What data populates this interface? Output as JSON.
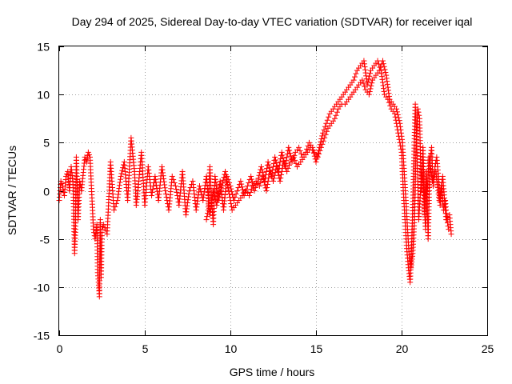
{
  "chart_data": {
    "type": "scatter",
    "title": "Day 294 of 2025, Sidereal Day-to-day VTEC variation (SDTVAR) for receiver iqal",
    "xlabel": "GPS time / hours",
    "ylabel": "SDTVAR / TECUs",
    "xlim": [
      0,
      25
    ],
    "ylim": [
      -15,
      15
    ],
    "xticks": [
      0,
      5,
      10,
      15,
      20,
      25
    ],
    "yticks": [
      -15,
      -10,
      -5,
      0,
      5,
      10,
      15
    ],
    "xtick_labels": [
      "0",
      "5",
      "10",
      "15",
      "20",
      "25"
    ],
    "ytick_labels": [
      "-15",
      "-10",
      "-5",
      "0",
      "5",
      "10",
      "15"
    ],
    "grid": true,
    "marker": "plus",
    "series": [
      {
        "name": "SDTVAR",
        "color": "#ff0000",
        "x": [
          0.0,
          0.1,
          0.2,
          0.3,
          0.4,
          0.5,
          0.6,
          0.7,
          0.8,
          0.85,
          0.9,
          0.95,
          1.0,
          1.05,
          1.1,
          1.2,
          1.3,
          1.5,
          1.6,
          1.7,
          1.8,
          2.0,
          2.1,
          2.2,
          2.25,
          2.3,
          2.35,
          2.4,
          2.45,
          2.5,
          2.6,
          2.8,
          3.0,
          3.2,
          3.4,
          3.6,
          3.8,
          4.0,
          4.2,
          4.4,
          4.5,
          4.6,
          4.8,
          5.0,
          5.2,
          5.4,
          5.6,
          5.8,
          6.0,
          6.2,
          6.4,
          6.6,
          6.8,
          7.0,
          7.2,
          7.4,
          7.6,
          7.8,
          8.0,
          8.2,
          8.4,
          8.6,
          8.8,
          9.0,
          9.2,
          9.4,
          9.6,
          9.8,
          10.0,
          10.2,
          10.4,
          10.6,
          10.8,
          11.0,
          11.2,
          11.4,
          11.6,
          11.8,
          12.0,
          12.2,
          12.4,
          12.6,
          12.8,
          13.0,
          13.2,
          13.4,
          13.6,
          13.8,
          14.0,
          14.2,
          14.4,
          14.6,
          14.8,
          15.0,
          15.2,
          15.4,
          15.6,
          15.8,
          16.0,
          16.2,
          16.4,
          16.6,
          16.8,
          17.0,
          17.2,
          17.4,
          17.6,
          17.8,
          18.0,
          18.2,
          18.4,
          18.6,
          18.8,
          19.0,
          19.2,
          19.4,
          19.6,
          19.8,
          20.0,
          20.1,
          20.2,
          20.3,
          20.4,
          20.5,
          20.6,
          20.7,
          20.8,
          20.9,
          21.0,
          21.2,
          21.4,
          21.6,
          21.8,
          22.0,
          22.2,
          22.4,
          22.6,
          22.8,
          22.9
        ],
        "y": [
          -1.0,
          1.0,
          0.5,
          -0.5,
          1.5,
          2.0,
          0.0,
          2.5,
          1.0,
          -2.0,
          -6.5,
          -4.0,
          3.5,
          0.5,
          -3.0,
          1.0,
          0.0,
          3.5,
          3.0,
          4.0,
          3.5,
          -4.0,
          -5.0,
          -3.5,
          -8.5,
          -9.5,
          -11.0,
          -3.0,
          -9.0,
          -4.0,
          -3.5,
          -4.5,
          3.0,
          -2.0,
          -1.0,
          1.5,
          3.0,
          -1.0,
          5.5,
          2.0,
          -1.5,
          0.0,
          4.0,
          -1.5,
          2.5,
          -0.5,
          1.5,
          -1.0,
          2.5,
          0.0,
          -2.0,
          1.5,
          0.5,
          -1.5,
          2.0,
          -2.5,
          0.0,
          1.0,
          -2.0,
          0.5,
          -1.0,
          1.5,
          -2.5,
          0.0,
          -1.5,
          1.0,
          -2.0,
          1.5,
          0.5,
          -1.0,
          0.0,
          1.0,
          -0.5,
          0.5,
          1.5,
          0.0,
          1.0,
          2.5,
          1.0,
          3.0,
          1.5,
          3.5,
          2.0,
          4.0,
          2.5,
          4.5,
          3.0,
          4.0,
          4.5,
          3.5,
          4.0,
          5.0,
          4.5,
          3.0,
          4.5,
          6.0,
          7.0,
          8.0,
          8.5,
          9.0,
          9.5,
          10.0,
          10.5,
          11.0,
          11.5,
          12.5,
          13.0,
          13.5,
          11.0,
          12.5,
          13.0,
          13.5,
          12.5,
          10.0,
          9.5,
          8.5,
          8.0,
          6.0,
          4.0,
          0.0,
          -3.0,
          -6.0,
          -8.0,
          -9.5,
          -5.0,
          1.5,
          9.0,
          4.0,
          -3.0,
          2.5,
          -4.0,
          3.5,
          1.0,
          2.0,
          -1.0,
          1.5,
          -3.0,
          -2.5,
          -4.5
        ],
        "x2": [
          8.6,
          8.7,
          8.8,
          8.9,
          9.0,
          9.1,
          9.3,
          9.5,
          9.7,
          10.1,
          10.3,
          10.5,
          10.7,
          10.9,
          11.1,
          11.3,
          11.5,
          11.7,
          11.9,
          12.1,
          12.3,
          12.5,
          12.7,
          12.9,
          13.1,
          13.3,
          13.5,
          13.7,
          13.9,
          14.1,
          14.3,
          14.5,
          14.7,
          14.9,
          15.1,
          15.3,
          15.5,
          15.7,
          15.9,
          16.1,
          16.3,
          16.5,
          16.7,
          16.9,
          17.1,
          17.3,
          17.5,
          17.7,
          17.9,
          18.1,
          18.3,
          18.5,
          18.7,
          18.9,
          19.1,
          19.3,
          19.5,
          19.7,
          19.9,
          20.05,
          20.15,
          20.25,
          20.35,
          20.45,
          20.55,
          20.65,
          20.75,
          20.85,
          20.95,
          21.05,
          21.15,
          21.25,
          21.35,
          21.45,
          21.55,
          21.65,
          21.75,
          21.85,
          21.95,
          22.05,
          22.15,
          22.25,
          22.35,
          22.45,
          22.55,
          22.65,
          22.75
        ],
        "y2": [
          -3.0,
          -2.0,
          2.5,
          -1.0,
          -3.5,
          1.5,
          -1.0,
          0.5,
          2.0,
          -2.0,
          -1.5,
          -1.0,
          -0.5,
          0.0,
          -0.5,
          0.5,
          1.0,
          0.5,
          1.5,
          0.0,
          2.0,
          1.0,
          2.5,
          1.0,
          3.0,
          2.0,
          3.0,
          3.5,
          2.5,
          3.0,
          3.5,
          4.0,
          4.5,
          4.0,
          3.5,
          4.5,
          5.5,
          6.5,
          7.0,
          7.5,
          8.5,
          9.0,
          9.0,
          9.5,
          10.0,
          10.5,
          11.0,
          11.5,
          10.5,
          10.0,
          11.5,
          12.0,
          12.5,
          13.5,
          12.0,
          9.5,
          9.0,
          8.5,
          7.0,
          5.0,
          2.0,
          -1.0,
          -4.0,
          -7.0,
          -8.0,
          -6.5,
          -3.0,
          5.0,
          8.5,
          7.5,
          0.0,
          4.5,
          -2.5,
          2.0,
          -5.0,
          3.0,
          4.5,
          0.5,
          2.5,
          3.5,
          1.5,
          -1.5,
          0.5,
          -2.0,
          -1.0,
          -3.0,
          -4.0
        ]
      }
    ]
  }
}
